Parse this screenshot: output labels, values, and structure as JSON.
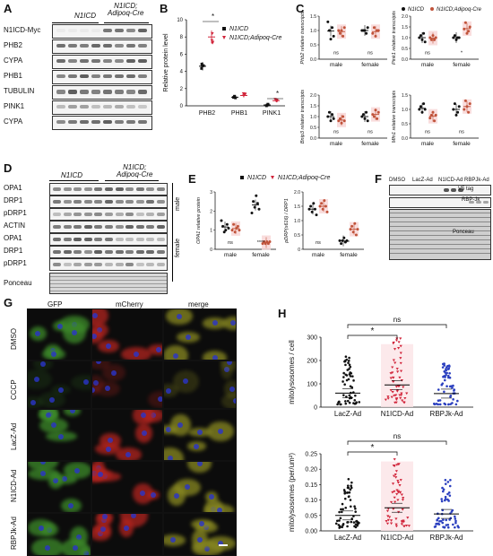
{
  "panels": {
    "A": {
      "label": "A",
      "groups": [
        "N1ICD",
        "N1ICD;\nAdipoq-Cre"
      ],
      "rows": [
        "N1ICD-Myc",
        "PHB2",
        "CYPA",
        "PHB1",
        "TUBULIN",
        "PINK1",
        "CYPA"
      ]
    },
    "B": {
      "label": "B",
      "ylabel": "Relative protein level",
      "legend": [
        "N1ICD",
        "N1ICD;Adipoq-Cre"
      ]
    },
    "C": {
      "label": "C",
      "legend": [
        "N1ICD",
        "N1ICD;Adipoq-Cre"
      ],
      "plots": [
        {
          "ylabel": "Phb2 relative transcripts",
          "stat": [
            "ns",
            "ns"
          ],
          "xlabels": [
            "male",
            "female"
          ]
        },
        {
          "ylabel": "Pink1 relative transcripts",
          "stat": [
            "ns",
            "*"
          ],
          "xlabels": [
            "male",
            "female"
          ]
        },
        {
          "ylabel": "Bnip3 relative transcripts",
          "stat": [
            "ns",
            "ns"
          ],
          "xlabels": [
            "male",
            "female"
          ]
        },
        {
          "ylabel": "Mfn1 relative transcripts",
          "stat": [
            "ns",
            "ns"
          ],
          "xlabels": [
            "male",
            "female"
          ]
        }
      ]
    },
    "D": {
      "label": "D",
      "groups": [
        "N1ICD",
        "N1ICD;\nAdipoq-Cre"
      ],
      "rows": [
        "OPA1",
        "DRP1",
        "pDRP1",
        "ACTIN",
        "OPA1",
        "DRP1",
        "pDRP1",
        "Ponceau"
      ],
      "sex": [
        "male",
        "female"
      ]
    },
    "E": {
      "label": "E",
      "legend": [
        "N1ICD",
        "N1ICD;Adipoq-Cre"
      ],
      "plot1": {
        "ylabel": "OPA1 relative protein",
        "stat": [
          "ns",
          "****"
        ],
        "xlabels": [
          "male",
          "female"
        ]
      },
      "plot2": {
        "ylabel": "pDRP(s616) / DRP1",
        "stat": [
          "ns",
          "*"
        ],
        "xlabels": [
          "male",
          "female"
        ]
      }
    },
    "F": {
      "label": "F",
      "lanes": [
        "DMSO",
        "LacZ-Ad",
        "N1ICD-Ad",
        "RBPJk-Ad"
      ],
      "rows": [
        "V5 tag",
        "RBP-Jk",
        "Ponceau"
      ]
    },
    "G": {
      "label": "G",
      "columns": [
        "GFP",
        "mCherry",
        "merge"
      ],
      "rows": [
        "DMSO",
        "CCCP",
        "LacZ-Ad",
        "N1ICD-Ad",
        "RBPJk-Ad"
      ],
      "colors": {
        "gfp": "#3d8b2a",
        "mcherry": "#b3241f",
        "merge": "#8a8a22",
        "dark": "#0c0c0c"
      }
    },
    "H": {
      "label": "H",
      "stat_top": [
        "ns",
        "*"
      ],
      "stat_bottom": [
        "ns",
        "*"
      ]
    }
  },
  "chart_data": [
    {
      "type": "bar",
      "panel": "B",
      "categories": [
        "PHB2",
        "PHB1",
        "PINK1"
      ],
      "series": [
        {
          "name": "N1ICD",
          "values": [
            4.6,
            1.0,
            0.1
          ]
        },
        {
          "name": "N1ICD;Adipoq-Cre",
          "values": [
            8.0,
            1.2,
            0.6
          ]
        }
      ],
      "ylim": [
        0,
        10
      ],
      "yticks": [
        "0",
        "2",
        "4",
        "6",
        "8",
        "10"
      ],
      "annotations": [
        "*",
        "*"
      ]
    },
    {
      "type": "scatter",
      "panel": "C1",
      "categories": [
        "male",
        "female"
      ],
      "series": [
        {
          "name": "N1ICD",
          "values": [
            [
              1.3,
              1.0,
              0.7,
              1.1,
              0.8
            ],
            [
              1.0,
              1.0,
              1.0,
              0.9,
              1.1
            ]
          ]
        },
        {
          "name": "N1ICD;Adipoq-Cre",
          "values": [
            [
              1.0,
              0.9,
              1.0,
              0.8,
              1.1
            ],
            [
              0.9,
              1.1,
              0.8,
              1.0,
              1.0
            ]
          ]
        }
      ],
      "ylim": [
        0.0,
        1.5
      ],
      "yticks": [
        "0.0",
        "0.5",
        "1.0",
        "1.5"
      ]
    },
    {
      "type": "scatter",
      "panel": "C2",
      "categories": [
        "male",
        "female"
      ],
      "series": [
        {
          "name": "N1ICD",
          "values": [
            [
              1.0,
              1.1,
              0.9,
              1.2,
              0.8
            ],
            [
              1.0,
              1.1,
              0.9,
              1.0,
              1.0
            ]
          ]
        },
        {
          "name": "N1ICD;Adipoq-Cre",
          "values": [
            [
              1.0,
              0.9,
              1.1,
              0.9,
              1.0
            ],
            [
              1.4,
              1.7,
              1.2,
              1.3,
              1.5
            ]
          ]
        }
      ],
      "ylim": [
        0.0,
        2.0
      ],
      "yticks": [
        "0.0",
        "0.5",
        "1.0",
        "1.5",
        "2.0"
      ]
    },
    {
      "type": "scatter",
      "panel": "C3",
      "categories": [
        "male",
        "female"
      ],
      "series": [
        {
          "name": "N1ICD",
          "values": [
            [
              1.0,
              1.2,
              0.8,
              1.1,
              0.9
            ],
            [
              1.0,
              1.1,
              0.9,
              1.2,
              0.8
            ]
          ]
        },
        {
          "name": "N1ICD;Adipoq-Cre",
          "values": [
            [
              0.8,
              0.9,
              0.7,
              1.0,
              0.8
            ],
            [
              1.1,
              1.0,
              1.3,
              0.9,
              1.2
            ]
          ]
        }
      ],
      "ylim": [
        0.0,
        2.0
      ],
      "yticks": [
        "0.0",
        "0.5",
        "1.0",
        "1.5",
        "2.0"
      ]
    },
    {
      "type": "scatter",
      "panel": "C4",
      "categories": [
        "male",
        "female"
      ],
      "series": [
        {
          "name": "N1ICD",
          "values": [
            [
              1.0,
              1.1,
              0.9,
              1.2,
              1.0
            ],
            [
              1.0,
              1.2,
              0.8,
              0.9,
              1.1
            ]
          ]
        },
        {
          "name": "N1ICD;Adipoq-Cre",
          "values": [
            [
              0.7,
              0.8,
              0.9,
              0.6,
              0.8
            ],
            [
              1.0,
              1.3,
              1.1,
              0.9,
              1.2
            ]
          ]
        }
      ],
      "ylim": [
        0.0,
        1.5
      ],
      "yticks": [
        "0.0",
        "0.5",
        "1.0",
        "1.5"
      ]
    },
    {
      "type": "scatter",
      "panel": "E1",
      "categories": [
        "male",
        "female"
      ],
      "series": [
        {
          "name": "N1ICD",
          "values": [
            [
              1.5,
              1.2,
              0.9,
              1.0,
              1.3,
              1.1
            ],
            [
              1.9,
              2.5,
              2.2,
              2.8,
              2.4,
              2.1
            ]
          ]
        },
        {
          "name": "N1ICD;Adipoq-Cre",
          "values": [
            [
              1.0,
              1.3,
              0.9,
              1.1,
              1.2,
              1.0
            ],
            [
              0.3,
              0.4,
              0.3,
              0.4,
              0.3,
              0.4
            ]
          ]
        }
      ],
      "ylim": [
        0,
        3
      ],
      "yticks": [
        "0",
        "1",
        "2",
        "3"
      ]
    },
    {
      "type": "scatter",
      "panel": "E2",
      "categories": [
        "male",
        "female"
      ],
      "series": [
        {
          "name": "N1ICD",
          "values": [
            [
              1.4,
              1.5,
              1.3,
              1.6,
              1.4,
              1.2
            ],
            [
              0.3,
              0.2,
              0.3,
              0.4,
              0.25,
              0.3
            ]
          ]
        },
        {
          "name": "N1ICD;Adipoq-Cre",
          "values": [
            [
              1.5,
              1.6,
              1.4,
              1.7,
              1.5,
              1.3
            ],
            [
              0.7,
              0.8,
              0.6,
              0.9,
              0.5,
              0.7
            ]
          ]
        }
      ],
      "ylim": [
        0,
        2.0
      ],
      "yticks": [
        "0",
        "0.5",
        "1.0",
        "1.5",
        "2.0"
      ]
    },
    {
      "type": "scatter",
      "panel": "H1",
      "ylabel": "mitolysosomes / cell",
      "categories": [
        "LacZ-Ad",
        "N1ICD-Ad",
        "RBPJk-Ad"
      ],
      "means": [
        60,
        95,
        58
      ],
      "ylim": [
        0,
        300
      ],
      "yticks": [
        "0",
        "100",
        "200",
        "300"
      ],
      "colors": [
        "#111111",
        "#d1243a",
        "#2a3fbf"
      ]
    },
    {
      "type": "scatter",
      "panel": "H2",
      "ylabel": "mitolysosomes (per/um²)",
      "categories": [
        "LacZ-Ad",
        "N1ICD-Ad",
        "RBPJk-Ad"
      ],
      "means": [
        0.05,
        0.075,
        0.055
      ],
      "ylim": [
        0,
        0.25
      ],
      "yticks": [
        "0.00",
        "0.05",
        "0.10",
        "0.15",
        "0.20",
        "0.25"
      ],
      "colors": [
        "#111111",
        "#d1243a",
        "#2a3fbf"
      ]
    }
  ]
}
